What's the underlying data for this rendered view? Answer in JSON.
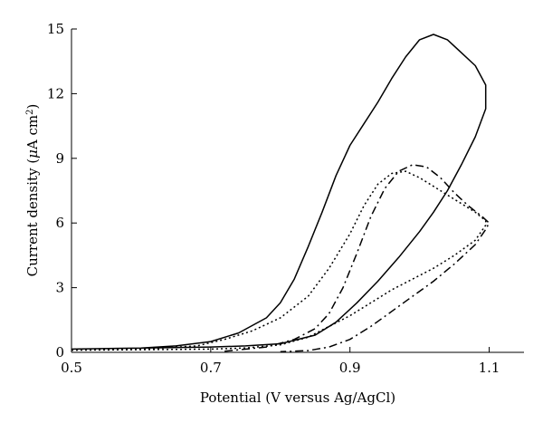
{
  "chart_data": {
    "type": "line",
    "title": "",
    "xlabel": "Potential (V versus Ag/AgCl)",
    "ylabel": "Current density (μA cm²)",
    "ylabel_parts": {
      "prefix": "Current density (",
      "mu": "μ",
      "unit": "A cm",
      "sup": "2",
      "suffix": ")"
    },
    "xlim": [
      0.5,
      1.15
    ],
    "ylim": [
      0,
      15
    ],
    "xticks": [
      {
        "value": 0.5,
        "label": "0.5"
      },
      {
        "value": 0.7,
        "label": "0.7"
      },
      {
        "value": 0.9,
        "label": "0.9"
      },
      {
        "value": 1.1,
        "label": "1.1"
      }
    ],
    "yticks": [
      {
        "value": 0,
        "label": "0"
      },
      {
        "value": 3,
        "label": "3"
      },
      {
        "value": 6,
        "label": "6"
      },
      {
        "value": 9,
        "label": "9"
      },
      {
        "value": 12,
        "label": "12"
      },
      {
        "value": 15,
        "label": "15"
      }
    ],
    "grid": false,
    "legend": "none",
    "series": [
      {
        "style": "solid",
        "points": [
          [
            0.5,
            0.15
          ],
          [
            0.6,
            0.2
          ],
          [
            0.65,
            0.3
          ],
          [
            0.7,
            0.5
          ],
          [
            0.74,
            0.9
          ],
          [
            0.78,
            1.6
          ],
          [
            0.8,
            2.3
          ],
          [
            0.82,
            3.4
          ],
          [
            0.84,
            4.9
          ],
          [
            0.86,
            6.5
          ],
          [
            0.88,
            8.2
          ],
          [
            0.9,
            9.6
          ],
          [
            0.92,
            10.6
          ],
          [
            0.94,
            11.6
          ],
          [
            0.96,
            12.7
          ],
          [
            0.98,
            13.7
          ],
          [
            1.0,
            14.5
          ],
          [
            1.02,
            14.75
          ],
          [
            1.04,
            14.5
          ],
          [
            1.06,
            13.9
          ],
          [
            1.08,
            13.3
          ],
          [
            1.095,
            12.4
          ],
          [
            1.095,
            11.3
          ],
          [
            1.08,
            10.0
          ],
          [
            1.06,
            8.7
          ],
          [
            1.04,
            7.5
          ],
          [
            1.02,
            6.5
          ],
          [
            1.0,
            5.6
          ],
          [
            0.97,
            4.4
          ],
          [
            0.94,
            3.3
          ],
          [
            0.91,
            2.3
          ],
          [
            0.88,
            1.4
          ],
          [
            0.85,
            0.8
          ],
          [
            0.8,
            0.4
          ],
          [
            0.75,
            0.3
          ],
          [
            0.7,
            0.25
          ],
          [
            0.6,
            0.2
          ],
          [
            0.5,
            0.15
          ]
        ]
      },
      {
        "style": "dotted",
        "points": [
          [
            0.5,
            0.1
          ],
          [
            0.6,
            0.15
          ],
          [
            0.68,
            0.3
          ],
          [
            0.72,
            0.6
          ],
          [
            0.76,
            1.0
          ],
          [
            0.8,
            1.6
          ],
          [
            0.84,
            2.6
          ],
          [
            0.87,
            3.9
          ],
          [
            0.9,
            5.5
          ],
          [
            0.92,
            6.8
          ],
          [
            0.94,
            7.8
          ],
          [
            0.96,
            8.3
          ],
          [
            0.98,
            8.4
          ],
          [
            1.0,
            8.1
          ],
          [
            1.02,
            7.7
          ],
          [
            1.04,
            7.3
          ],
          [
            1.06,
            6.9
          ],
          [
            1.08,
            6.5
          ],
          [
            1.095,
            6.1
          ],
          [
            1.095,
            5.9
          ],
          [
            1.08,
            5.2
          ],
          [
            1.05,
            4.5
          ],
          [
            1.02,
            3.9
          ],
          [
            0.99,
            3.4
          ],
          [
            0.96,
            2.9
          ],
          [
            0.93,
            2.3
          ],
          [
            0.9,
            1.7
          ],
          [
            0.87,
            1.2
          ],
          [
            0.84,
            0.7
          ],
          [
            0.8,
            0.35
          ],
          [
            0.75,
            0.2
          ],
          [
            0.7,
            0.15
          ],
          [
            0.6,
            0.12
          ],
          [
            0.5,
            0.1
          ]
        ]
      },
      {
        "style": "dashdot",
        "points": [
          [
            0.72,
            0.05
          ],
          [
            0.78,
            0.25
          ],
          [
            0.82,
            0.6
          ],
          [
            0.85,
            1.1
          ],
          [
            0.87,
            1.8
          ],
          [
            0.89,
            3.0
          ],
          [
            0.91,
            4.6
          ],
          [
            0.93,
            6.3
          ],
          [
            0.95,
            7.6
          ],
          [
            0.97,
            8.4
          ],
          [
            0.99,
            8.7
          ],
          [
            1.01,
            8.6
          ],
          [
            1.03,
            8.1
          ],
          [
            1.05,
            7.4
          ],
          [
            1.07,
            6.8
          ],
          [
            1.09,
            6.3
          ],
          [
            1.1,
            6.0
          ],
          [
            1.095,
            5.7
          ],
          [
            1.08,
            5.0
          ],
          [
            1.05,
            4.1
          ],
          [
            1.02,
            3.3
          ],
          [
            0.99,
            2.6
          ],
          [
            0.96,
            1.9
          ],
          [
            0.93,
            1.2
          ],
          [
            0.9,
            0.6
          ],
          [
            0.87,
            0.25
          ],
          [
            0.84,
            0.08
          ],
          [
            0.8,
            0.03
          ]
        ]
      }
    ]
  }
}
